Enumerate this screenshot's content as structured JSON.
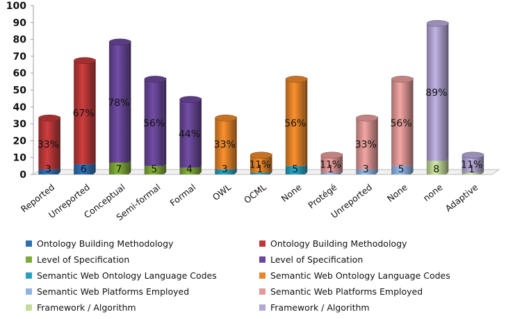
{
  "chart_data": {
    "type": "bar",
    "categories": [
      "Reported",
      "Unreported",
      "Conceptual",
      "Semi-formal",
      "Formal",
      "OWL",
      "OCML",
      "None",
      "Protégé",
      "Unreported",
      "None",
      "none",
      "Adaptive"
    ],
    "ylim": [
      0,
      100
    ],
    "y_ticks": [
      "0",
      "10",
      "20",
      "30",
      "40",
      "50",
      "60",
      "70",
      "80",
      "90",
      "100"
    ],
    "bars": [
      {
        "category": "Reported",
        "count_value": 3,
        "percent_value": 33,
        "count_label": "3",
        "percent_label": "33%",
        "count_series": 0,
        "percent_series": 1
      },
      {
        "category": "Unreported",
        "count_value": 6,
        "percent_value": 67,
        "count_label": "6",
        "percent_label": "67%",
        "count_series": 0,
        "percent_series": 1
      },
      {
        "category": "Conceptual",
        "count_value": 7,
        "percent_value": 78,
        "count_label": "7",
        "percent_label": "78%",
        "count_series": 2,
        "percent_series": 3
      },
      {
        "category": "Semi-formal",
        "count_value": 5,
        "percent_value": 56,
        "count_label": "5",
        "percent_label": "56%",
        "count_series": 2,
        "percent_series": 3
      },
      {
        "category": "Formal",
        "count_value": 4,
        "percent_value": 44,
        "count_label": "4",
        "percent_label": "44%",
        "count_series": 2,
        "percent_series": 3
      },
      {
        "category": "OWL",
        "count_value": 3,
        "percent_value": 33,
        "count_label": "3",
        "percent_label": "33%",
        "count_series": 4,
        "percent_series": 5
      },
      {
        "category": "OCML",
        "count_value": 1,
        "percent_value": 11,
        "count_label": "1",
        "percent_label": "11%",
        "count_series": 4,
        "percent_series": 5
      },
      {
        "category": "None",
        "count_value": 5,
        "percent_value": 56,
        "count_label": "5",
        "percent_label": "56%",
        "count_series": 4,
        "percent_series": 5
      },
      {
        "category": "Protégé",
        "count_value": 1,
        "percent_value": 11,
        "count_label": "1",
        "percent_label": "11%",
        "count_series": 6,
        "percent_series": 7
      },
      {
        "category": "Unreported",
        "count_value": 3,
        "percent_value": 33,
        "count_label": "3",
        "percent_label": "33%",
        "count_series": 6,
        "percent_series": 7
      },
      {
        "category": "None",
        "count_value": 5,
        "percent_value": 56,
        "count_label": "5",
        "percent_label": "56%",
        "count_series": 6,
        "percent_series": 7
      },
      {
        "category": "none",
        "count_value": 8,
        "percent_value": 89,
        "count_label": "8",
        "percent_label": "89%",
        "count_series": 8,
        "percent_series": 9
      },
      {
        "category": "Adaptive",
        "count_value": 1,
        "percent_value": 11,
        "count_label": "1",
        "percent_label": "11%",
        "count_series": 8,
        "percent_series": 9
      }
    ],
    "series": [
      {
        "name": "Ontology Building Methodology",
        "color": "#2e6fb0"
      },
      {
        "name": "Ontology Building Methodology",
        "color": "#c0393a"
      },
      {
        "name": "Level of Specification",
        "color": "#7eaa37"
      },
      {
        "name": "Level of Specification",
        "color": "#6a479a"
      },
      {
        "name": "Semantic Web Ontology Language Codes",
        "color": "#2a9fbd"
      },
      {
        "name": "Semantic Web Ontology Language Codes",
        "color": "#e8862a"
      },
      {
        "name": "Semantic Web Platforms Employed",
        "color": "#8fb4e2"
      },
      {
        "name": "Semantic Web Platforms Employed",
        "color": "#e39a98"
      },
      {
        "name": "Framework / Algorithm",
        "color": "#c4dc98"
      },
      {
        "name": "Framework / Algorithm",
        "color": "#b4a7d6"
      }
    ],
    "grid": false,
    "legend_position": "bottom"
  }
}
